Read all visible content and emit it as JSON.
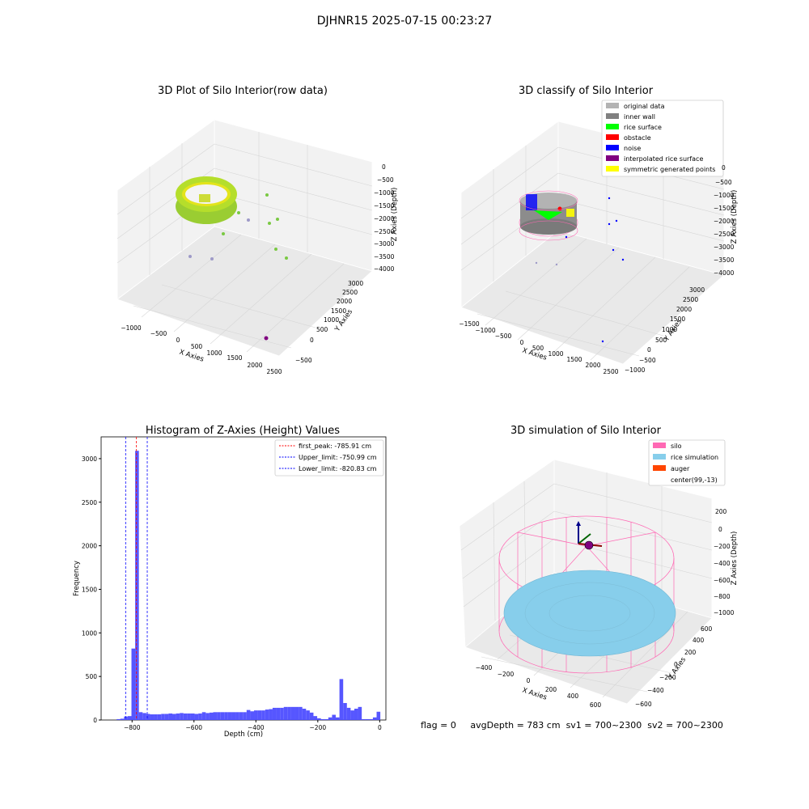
{
  "figure_title": "DJHNR15 2025-07-15 00:23:27",
  "footer": {
    "flag": "flag = 0",
    "avg_depth": "avgDepth = 783 cm",
    "sv1": "sv1 = 700~2300",
    "sv2": "sv2 = 700~2300"
  },
  "chart_data": [
    {
      "type": "scatter",
      "title": "3D Plot of Silo Interior(row data)",
      "xlabel": "X Axies",
      "ylabel": "Y Axies",
      "zlabel": "Z Axies (Depth)",
      "x_ticks": [
        "−1000",
        "−500",
        "0",
        "500",
        "1000",
        "1500",
        "2000",
        "2500"
      ],
      "y_ticks": [
        "−500",
        "0",
        "500",
        "1000",
        "1500",
        "2000",
        "2500",
        "3000"
      ],
      "z_ticks": [
        "0",
        "−500",
        "−1000",
        "−1500",
        "−2000",
        "−2500",
        "−3000",
        "−3500",
        "−4000"
      ],
      "colormap": [
        "#7ac943",
        "#b5de2b",
        "#e8e419",
        "#440154"
      ]
    },
    {
      "type": "scatter",
      "title": "3D classify of Silo Interior",
      "xlabel": "X Axies",
      "ylabel": "Y Axies",
      "zlabel": "Z Axies (Depth)",
      "x_ticks": [
        "−1500",
        "−1000",
        "−500",
        "0",
        "500",
        "1000",
        "1500",
        "2000",
        "2500"
      ],
      "y_ticks": [
        "−1000",
        "−500",
        "0",
        "500",
        "1000",
        "1500",
        "2000",
        "2500",
        "3000"
      ],
      "z_ticks": [
        "0",
        "−500",
        "−1000",
        "−1500",
        "−2000",
        "−2500",
        "−3000",
        "−3500",
        "−4000"
      ],
      "legend_position": "top-right",
      "legend": [
        {
          "label": "original data",
          "color": "#b3b3b3"
        },
        {
          "label": "inner wall",
          "color": "#808080"
        },
        {
          "label": "rice surface",
          "color": "#00ff00"
        },
        {
          "label": "obstacle",
          "color": "#ff0000"
        },
        {
          "label": "noise",
          "color": "#0000ff"
        },
        {
          "label": "interpolated rice surface",
          "color": "#800080"
        },
        {
          "label": "symmetric generated points",
          "color": "#ffff00"
        }
      ]
    },
    {
      "type": "bar",
      "title": "Histogram of Z-Axies (Height) Values",
      "xlabel": "Depth (cm)",
      "ylabel": "Frequency",
      "xlim": [
        -900,
        20
      ],
      "ylim": [
        0,
        3250
      ],
      "x_ticks": [
        -800,
        -600,
        -400,
        -200,
        0
      ],
      "y_ticks": [
        0,
        500,
        1000,
        1500,
        2000,
        2500,
        3000
      ],
      "bin_width": 12,
      "bar_color": "#4d4dff",
      "bins": [
        {
          "x": -850,
          "v": 10
        },
        {
          "x": -838,
          "v": 15
        },
        {
          "x": -826,
          "v": 40
        },
        {
          "x": -814,
          "v": 45
        },
        {
          "x": -802,
          "v": 820
        },
        {
          "x": -790,
          "v": 3090
        },
        {
          "x": -778,
          "v": 90
        },
        {
          "x": -766,
          "v": 80
        },
        {
          "x": -754,
          "v": 70
        },
        {
          "x": -742,
          "v": 65
        },
        {
          "x": -730,
          "v": 65
        },
        {
          "x": -718,
          "v": 65
        },
        {
          "x": -706,
          "v": 70
        },
        {
          "x": -694,
          "v": 70
        },
        {
          "x": -682,
          "v": 75
        },
        {
          "x": -670,
          "v": 70
        },
        {
          "x": -658,
          "v": 75
        },
        {
          "x": -646,
          "v": 80
        },
        {
          "x": -634,
          "v": 75
        },
        {
          "x": -622,
          "v": 75
        },
        {
          "x": -610,
          "v": 75
        },
        {
          "x": -598,
          "v": 70
        },
        {
          "x": -586,
          "v": 75
        },
        {
          "x": -574,
          "v": 90
        },
        {
          "x": -562,
          "v": 80
        },
        {
          "x": -550,
          "v": 85
        },
        {
          "x": -538,
          "v": 90
        },
        {
          "x": -526,
          "v": 90
        },
        {
          "x": -514,
          "v": 90
        },
        {
          "x": -502,
          "v": 90
        },
        {
          "x": -490,
          "v": 90
        },
        {
          "x": -478,
          "v": 90
        },
        {
          "x": -466,
          "v": 90
        },
        {
          "x": -454,
          "v": 90
        },
        {
          "x": -442,
          "v": 90
        },
        {
          "x": -430,
          "v": 115
        },
        {
          "x": -418,
          "v": 100
        },
        {
          "x": -406,
          "v": 110
        },
        {
          "x": -394,
          "v": 110
        },
        {
          "x": -382,
          "v": 110
        },
        {
          "x": -370,
          "v": 120
        },
        {
          "x": -358,
          "v": 125
        },
        {
          "x": -346,
          "v": 140
        },
        {
          "x": -334,
          "v": 140
        },
        {
          "x": -322,
          "v": 140
        },
        {
          "x": -310,
          "v": 150
        },
        {
          "x": -298,
          "v": 150
        },
        {
          "x": -286,
          "v": 150
        },
        {
          "x": -274,
          "v": 150
        },
        {
          "x": -262,
          "v": 150
        },
        {
          "x": -250,
          "v": 130
        },
        {
          "x": -238,
          "v": 110
        },
        {
          "x": -226,
          "v": 85
        },
        {
          "x": -214,
          "v": 45
        },
        {
          "x": -202,
          "v": 20
        },
        {
          "x": -190,
          "v": 10
        },
        {
          "x": -178,
          "v": 10
        },
        {
          "x": -166,
          "v": 30
        },
        {
          "x": -154,
          "v": 60
        },
        {
          "x": -142,
          "v": 30
        },
        {
          "x": -130,
          "v": 470
        },
        {
          "x": -118,
          "v": 195
        },
        {
          "x": -106,
          "v": 140
        },
        {
          "x": -94,
          "v": 110
        },
        {
          "x": -82,
          "v": 130
        },
        {
          "x": -70,
          "v": 150
        },
        {
          "x": -58,
          "v": 10
        },
        {
          "x": -46,
          "v": 10
        },
        {
          "x": -34,
          "v": 10
        },
        {
          "x": -22,
          "v": 30
        },
        {
          "x": -10,
          "v": 95
        }
      ],
      "lines": [
        {
          "x": -785.91,
          "label": "first_peak: -785.91 cm",
          "color": "#ff0000"
        },
        {
          "x": -750.99,
          "label": "Upper_limit: -750.99 cm",
          "color": "#0000ff"
        },
        {
          "x": -820.83,
          "label": "Lower_limit: -820.83 cm",
          "color": "#0000ff"
        }
      ],
      "legend_position": "top-right"
    },
    {
      "type": "scatter",
      "title": "3D simulation of Silo Interior",
      "xlabel": "X Axies",
      "ylabel": "Y Axies",
      "zlabel": "Z Axies (Depth)",
      "x_ticks": [
        "−400",
        "−200",
        "0",
        "200",
        "400",
        "600"
      ],
      "y_ticks": [
        "−600",
        "−400",
        "−200",
        "0",
        "200",
        "400",
        "600"
      ],
      "z_ticks": [
        "200",
        "0",
        "−200",
        "−400",
        "−600",
        "−800",
        "−1000"
      ],
      "legend_position": "top-right",
      "legend": [
        {
          "label": "silo",
          "color": "#ff69b4"
        },
        {
          "label": "rice simulation",
          "color": "#87ceeb"
        },
        {
          "label": "auger",
          "color": "#ff4500"
        },
        {
          "label": "center(99,-13)",
          "color": "#ffffff"
        }
      ]
    }
  ]
}
